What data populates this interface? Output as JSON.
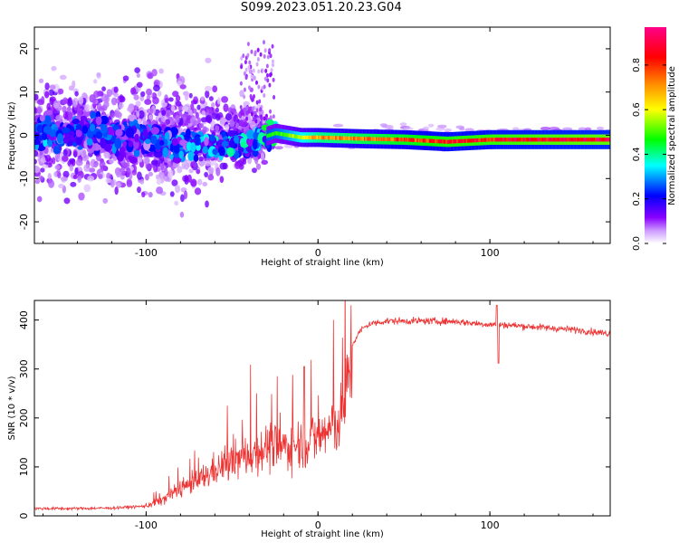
{
  "title": "S099.2023.051.20.23.G04",
  "chart_data": [
    {
      "type": "heatmap",
      "title": "S099.2023.051.20.23.G04",
      "xlabel": "Height of straight line (km)",
      "ylabel": "Frequency (Hz)",
      "xlim": [
        -165,
        170
      ],
      "ylim": [
        -25,
        25
      ],
      "x_ticks": [
        -100,
        0,
        100
      ],
      "y_ticks": [
        -20,
        -10,
        0,
        10,
        20
      ],
      "colorbar": {
        "label": "Normalized spectral amplitude",
        "range": [
          0,
          0.97
        ],
        "ticks": [
          "0.0",
          "0.2",
          "0.4",
          "0.6",
          "0.8"
        ],
        "colors": [
          "#ffffff",
          "#8800ff",
          "#0000ff",
          "#00ffff",
          "#00ff00",
          "#ffff00",
          "#ff8800",
          "#ff0000",
          "#ff0088"
        ]
      },
      "ridge": [
        {
          "x": -160,
          "freq": 0.5,
          "amp": 0.35
        },
        {
          "x": -140,
          "freq": 0.5,
          "amp": 0.3
        },
        {
          "x": -120,
          "freq": 0.0,
          "amp": 0.32
        },
        {
          "x": -100,
          "freq": -1.0,
          "amp": 0.3
        },
        {
          "x": -80,
          "freq": -2.0,
          "amp": 0.35
        },
        {
          "x": -60,
          "freq": -2.5,
          "amp": 0.4
        },
        {
          "x": -40,
          "freq": -1.5,
          "amp": 0.45
        },
        {
          "x": -25,
          "freq": 0.5,
          "amp": 0.5
        },
        {
          "x": -10,
          "freq": -0.5,
          "amp": 0.65
        },
        {
          "x": 0,
          "freq": -0.5,
          "amp": 0.75
        },
        {
          "x": 25,
          "freq": -0.8,
          "amp": 0.8
        },
        {
          "x": 50,
          "freq": -1.0,
          "amp": 0.85
        },
        {
          "x": 75,
          "freq": -1.5,
          "amp": 0.9
        },
        {
          "x": 100,
          "freq": -1.0,
          "amp": 0.92
        },
        {
          "x": 130,
          "freq": -1.0,
          "amp": 0.95
        },
        {
          "x": 170,
          "freq": -1.0,
          "amp": 0.97
        }
      ]
    },
    {
      "type": "line",
      "xlabel": "Height of straight line (km)",
      "ylabel": "SNR (10 * v/v)",
      "xlim": [
        -165,
        170
      ],
      "ylim": [
        0,
        440
      ],
      "x_ticks": [
        -100,
        0,
        100
      ],
      "y_ticks": [
        0,
        100,
        200,
        300,
        400
      ],
      "color": "#ee3333",
      "series": [
        {
          "x": [
            -165,
            -140,
            -120,
            -100,
            -90,
            -80,
            -70,
            -60,
            -50,
            -40,
            -30,
            -20,
            -10,
            0,
            10,
            15,
            18,
            20,
            25,
            30,
            40,
            60,
            80,
            95,
            105,
            110,
            130,
            150,
            170
          ],
          "values": [
            15,
            15,
            16,
            20,
            35,
            55,
            70,
            95,
            110,
            125,
            140,
            140,
            150,
            160,
            185,
            210,
            300,
            350,
            380,
            392,
            398,
            398,
            397,
            392,
            390,
            390,
            385,
            380,
            372
          ]
        }
      ]
    }
  ]
}
